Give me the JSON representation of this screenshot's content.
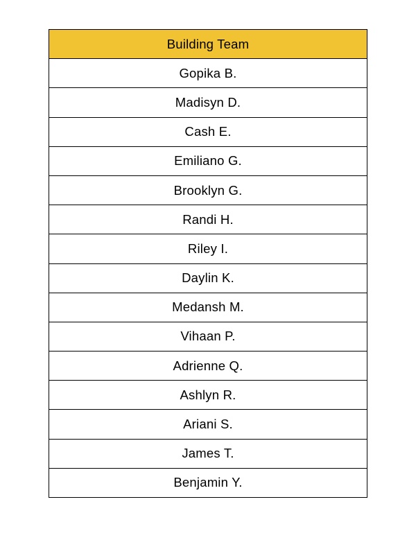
{
  "page": {
    "background": "#FFFFFF"
  },
  "table": {
    "header": "Building Team",
    "header_bg": "#F1C232",
    "border_color": "#000000",
    "text_color": "#000000",
    "rows": [
      "Gopika B.",
      "Madisyn D.",
      "Cash E.",
      "Emiliano G.",
      "Brooklyn G.",
      "Randi H.",
      "Riley I.",
      "Daylin K.",
      "Medansh M.",
      "Vihaan P.",
      "Adrienne Q.",
      "Ashlyn R.",
      "Ariani S.",
      "James T.",
      "Benjamin Y."
    ]
  }
}
